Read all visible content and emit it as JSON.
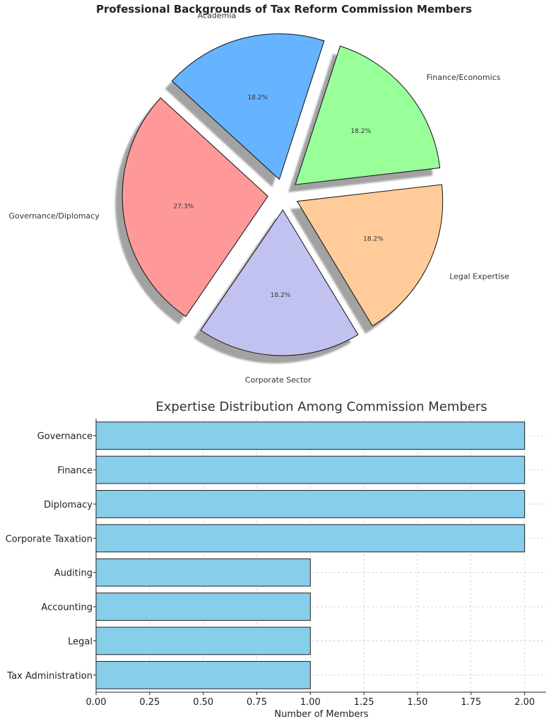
{
  "chart_data": [
    {
      "type": "pie",
      "title": "Professional Backgrounds of Tax Reform Commission Members",
      "slices": [
        {
          "label": "Governance/Diplomacy",
          "value": 27.3,
          "pct_label": "27.3%",
          "color": "#ff9999"
        },
        {
          "label": "Corporate Sector",
          "value": 18.2,
          "pct_label": "18.2%",
          "color": "#c2c2f0"
        },
        {
          "label": "Legal Expertise",
          "value": 18.2,
          "pct_label": "18.2%",
          "color": "#ffcc99"
        },
        {
          "label": "Finance/Economics",
          "value": 18.2,
          "pct_label": "18.2%",
          "color": "#99ff99"
        },
        {
          "label": "Academia",
          "value": 18.2,
          "pct_label": "18.2%",
          "color": "#66b3ff"
        }
      ],
      "exploded": true,
      "shadow": true
    },
    {
      "type": "bar",
      "orientation": "horizontal",
      "title": "Expertise Distribution Among Commission Members",
      "categories": [
        "Governance",
        "Finance",
        "Diplomacy",
        "Corporate Taxation",
        "Auditing",
        "Accounting",
        "Legal",
        "Tax Administration"
      ],
      "values": [
        2,
        2,
        2,
        2,
        1,
        1,
        1,
        1
      ],
      "xlabel": "Number of Members",
      "ylabel": "",
      "xlim": [
        0,
        2.1
      ],
      "xticks": [
        "0.00",
        "0.25",
        "0.50",
        "0.75",
        "1.00",
        "1.25",
        "1.50",
        "1.75",
        "2.00"
      ],
      "grid": true,
      "bar_color": "#87ceeb",
      "edge_color": "#222222"
    }
  ]
}
